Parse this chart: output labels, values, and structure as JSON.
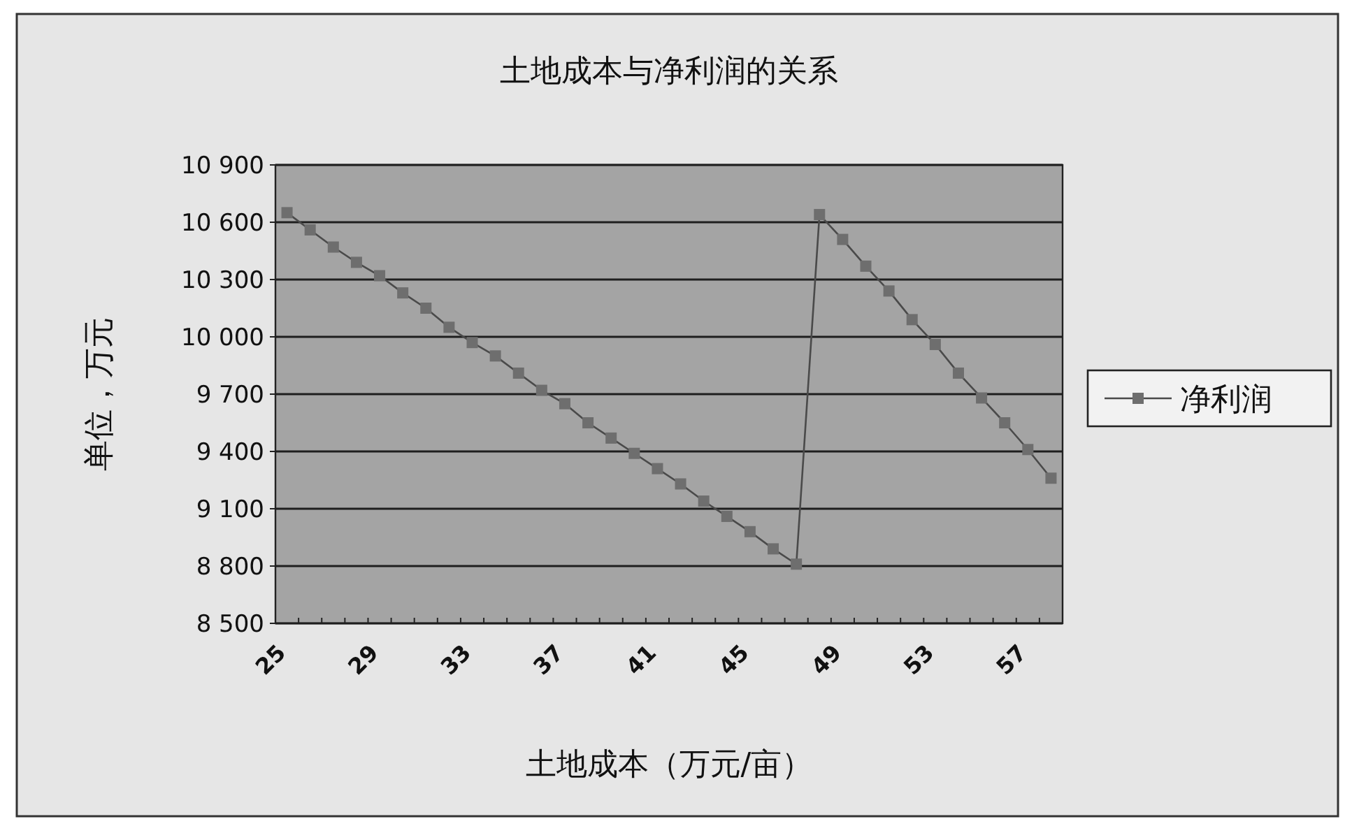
{
  "chart_data": {
    "type": "line",
    "title": "土地成本与净利润的关系",
    "xlabel": "土地成本（万元/亩）",
    "ylabel": "单位，万元",
    "categories": [
      "25",
      null,
      null,
      null,
      "29",
      null,
      null,
      null,
      "33",
      null,
      null,
      null,
      "37",
      null,
      null,
      null,
      "41",
      null,
      null,
      null,
      "45",
      null,
      null,
      null,
      "49",
      null,
      null,
      null,
      "53",
      null,
      null,
      null,
      "57",
      null
    ],
    "series": [
      {
        "name": "净利润",
        "color": "#6e6e6e",
        "values": [
          10650,
          10560,
          10470,
          10390,
          10320,
          10230,
          10150,
          10050,
          9970,
          9900,
          9810,
          9720,
          9650,
          9550,
          9470,
          9390,
          9310,
          9230,
          9140,
          9060,
          8980,
          8890,
          8810,
          10640,
          10510,
          10370,
          10240,
          10090,
          9960,
          9810,
          9680,
          9550,
          9410,
          9260
        ]
      }
    ],
    "ylim": [
      8500,
      10900
    ],
    "yticks": [
      {
        "value": 8500,
        "label": "8 500"
      },
      {
        "value": 8800,
        "label": "8 800"
      },
      {
        "value": 9100,
        "label": "9 100"
      },
      {
        "value": 9400,
        "label": "9 400"
      },
      {
        "value": 9700,
        "label": "9 700"
      },
      {
        "value": 10000,
        "label": "10 000"
      },
      {
        "value": 10300,
        "label": "10 300"
      },
      {
        "value": 10600,
        "label": "10 600"
      },
      {
        "value": 10900,
        "label": "10 900"
      }
    ],
    "grid": "y",
    "legend": "right",
    "marker": "square",
    "line_style": "solid"
  }
}
